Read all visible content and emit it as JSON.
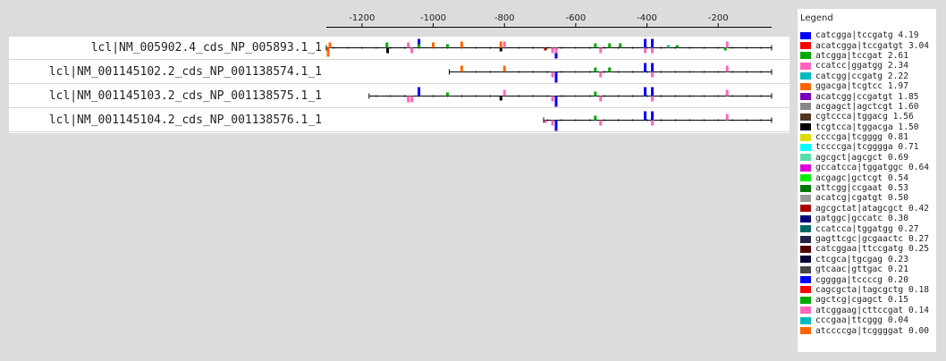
{
  "axis": {
    "ticks": [
      -1200,
      -1000,
      -800,
      -600,
      -400,
      -200
    ],
    "min": -1300,
    "max": -50
  },
  "sequences": [
    {
      "label": "lcl|NM_005902.4_cds_NP_005893.1_1",
      "start": -1300
    },
    {
      "label": "lcl|NM_001145102.2_cds_NP_001138574.1_1",
      "start": -955
    },
    {
      "label": "lcl|NM_001145103.2_cds_NP_001138575.1_1",
      "start": -1180
    },
    {
      "label": "lcl|NM_001145104.2_cds_NP_001138576.1_1",
      "start": -690
    }
  ],
  "legend": {
    "title": "Legend",
    "items": [
      {
        "label": "catcgga|tccgatg 4.19",
        "color": "#0000ff"
      },
      {
        "label": "acatcgga|tccgatgt 3.04",
        "color": "#ff0000"
      },
      {
        "label": "atcgga|tccgat 2.61",
        "color": "#00aa00"
      },
      {
        "label": "ccatcc|ggatgg 2.34",
        "color": "#ff66bb"
      },
      {
        "label": "catcgg|ccgatg 2.22",
        "color": "#00bbbb"
      },
      {
        "label": "ggacga|tcgtcc 1.97",
        "color": "#ff6600"
      },
      {
        "label": "acatcgg|ccgatgt 1.85",
        "color": "#7700bb"
      },
      {
        "label": "acgagct|agctcgt 1.60",
        "color": "#888888"
      },
      {
        "label": "cgtccca|tggacg 1.56",
        "color": "#553322"
      },
      {
        "label": "tcgtcca|tggacga 1.50",
        "color": "#000000"
      },
      {
        "label": "ccccga|tcgggg 0.81",
        "color": "#dddd00"
      },
      {
        "label": "tccccga|tcgggga 0.71",
        "color": "#00ffff"
      },
      {
        "label": "agcgct|agcgct 0.69",
        "color": "#55ddaa"
      },
      {
        "label": "gccatcca|tggatggc 0.64",
        "color": "#dd00dd"
      },
      {
        "label": "acgagc|gctcgt 0.54",
        "color": "#00ee00"
      },
      {
        "label": "attcgg|ccgaat 0.53",
        "color": "#007700"
      },
      {
        "label": "acatcg|cgatgt 0.50",
        "color": "#999999"
      },
      {
        "label": "agcgctat|atagcgct 0.42",
        "color": "#aa0000"
      },
      {
        "label": "gatggc|gccatc 0.30",
        "color": "#000077"
      },
      {
        "label": "ccatcca|tggatgg 0.27",
        "color": "#006666"
      },
      {
        "label": "gagttcgc|gcgaactc 0.27",
        "color": "#222244"
      },
      {
        "label": "catcggaa|ttccgatg 0.25",
        "color": "#550000"
      },
      {
        "label": "ctcgca|tgcgag 0.23",
        "color": "#000033"
      },
      {
        "label": "gtcaac|gttgac 0.21",
        "color": "#444444"
      },
      {
        "label": "cggggа|tccccg 0.20",
        "color": "#0000ff"
      },
      {
        "label": "cagcgcta|tagcgctg 0.18",
        "color": "#ff0000"
      },
      {
        "label": "agctcg|cgagct 0.15",
        "color": "#00aa00"
      },
      {
        "label": "atcggaag|cttccgat 0.14",
        "color": "#ff66bb"
      },
      {
        "label": "cccgaa|ttcggg 0.04",
        "color": "#00bbbb"
      },
      {
        "label": "atccccga|tcggggat 0.00",
        "color": "#ff6600"
      }
    ]
  },
  "sites": [
    {
      "row": 0,
      "pos": -1295,
      "color": "#ff6600",
      "strand": "minus",
      "h": 10
    },
    {
      "row": 0,
      "pos": -1290,
      "color": "#ff6600",
      "strand": "plus",
      "h": 6
    },
    {
      "row": 0,
      "pos": -1130,
      "color": "#00aa00",
      "strand": "plus",
      "h": 6
    },
    {
      "row": 0,
      "pos": -1128,
      "color": "#000000",
      "strand": "minus",
      "h": 6
    },
    {
      "row": 0,
      "pos": -1070,
      "color": "#ff66bb",
      "strand": "plus",
      "h": 6
    },
    {
      "row": 0,
      "pos": -1060,
      "color": "#ff66bb",
      "strand": "minus",
      "h": 6
    },
    {
      "row": 0,
      "pos": -1040,
      "color": "#0000ff",
      "strand": "plus",
      "h": 10
    },
    {
      "row": 0,
      "pos": -1040,
      "color": "#00aa00",
      "strand": "plus",
      "h": 4
    },
    {
      "row": 0,
      "pos": -1000,
      "color": "#ff6600",
      "strand": "plus",
      "h": 6
    },
    {
      "row": 0,
      "pos": -960,
      "color": "#00aa00",
      "strand": "plus",
      "h": 4
    },
    {
      "row": 0,
      "pos": -920,
      "color": "#ff6600",
      "strand": "plus",
      "h": 7
    },
    {
      "row": 0,
      "pos": -810,
      "color": "#ff6600",
      "strand": "plus",
      "h": 7
    },
    {
      "row": 0,
      "pos": -800,
      "color": "#ff66bb",
      "strand": "plus",
      "h": 7
    },
    {
      "row": 0,
      "pos": -810,
      "color": "#000000",
      "strand": "minus",
      "h": 4
    },
    {
      "row": 0,
      "pos": -685,
      "color": "#aa0000",
      "strand": "minus",
      "h": 3
    },
    {
      "row": 0,
      "pos": -665,
      "color": "#ff66bb",
      "strand": "minus",
      "h": 6
    },
    {
      "row": 0,
      "pos": -655,
      "color": "#0000ff",
      "strand": "minus",
      "h": 12
    },
    {
      "row": 0,
      "pos": -655,
      "color": "#ff66bb",
      "strand": "minus",
      "h": 6
    },
    {
      "row": 0,
      "pos": -545,
      "color": "#00aa00",
      "strand": "plus",
      "h": 5
    },
    {
      "row": 0,
      "pos": -530,
      "color": "#ff66bb",
      "strand": "minus",
      "h": 6
    },
    {
      "row": 0,
      "pos": -505,
      "color": "#00aa00",
      "strand": "plus",
      "h": 5
    },
    {
      "row": 0,
      "pos": -475,
      "color": "#00aa00",
      "strand": "plus",
      "h": 5
    },
    {
      "row": 0,
      "pos": -405,
      "color": "#0000ff",
      "strand": "plus",
      "h": 10
    },
    {
      "row": 0,
      "pos": -405,
      "color": "#ff66bb",
      "strand": "minus",
      "h": 6
    },
    {
      "row": 0,
      "pos": -385,
      "color": "#0000ff",
      "strand": "plus",
      "h": 10
    },
    {
      "row": 0,
      "pos": -385,
      "color": "#ff66bb",
      "strand": "minus",
      "h": 6
    },
    {
      "row": 0,
      "pos": -340,
      "color": "#00bbbb",
      "strand": "plus",
      "h": 3
    },
    {
      "row": 0,
      "pos": -315,
      "color": "#00aa00",
      "strand": "plus",
      "h": 3
    },
    {
      "row": 0,
      "pos": -175,
      "color": "#ff66bb",
      "strand": "plus",
      "h": 7
    },
    {
      "row": 0,
      "pos": -180,
      "color": "#00aa00",
      "strand": "minus",
      "h": 3
    },
    {
      "row": 1,
      "pos": -920,
      "color": "#ff6600",
      "strand": "plus",
      "h": 7
    },
    {
      "row": 1,
      "pos": -800,
      "color": "#ff6600",
      "strand": "plus",
      "h": 7
    },
    {
      "row": 1,
      "pos": -665,
      "color": "#ff66bb",
      "strand": "minus",
      "h": 6
    },
    {
      "row": 1,
      "pos": -655,
      "color": "#0000ff",
      "strand": "minus",
      "h": 12
    },
    {
      "row": 1,
      "pos": -545,
      "color": "#00aa00",
      "strand": "plus",
      "h": 5
    },
    {
      "row": 1,
      "pos": -530,
      "color": "#ff66bb",
      "strand": "minus",
      "h": 6
    },
    {
      "row": 1,
      "pos": -505,
      "color": "#00aa00",
      "strand": "plus",
      "h": 5
    },
    {
      "row": 1,
      "pos": -405,
      "color": "#0000ff",
      "strand": "plus",
      "h": 10
    },
    {
      "row": 1,
      "pos": -385,
      "color": "#0000ff",
      "strand": "plus",
      "h": 10
    },
    {
      "row": 1,
      "pos": -385,
      "color": "#ff66bb",
      "strand": "minus",
      "h": 6
    },
    {
      "row": 1,
      "pos": -175,
      "color": "#ff66bb",
      "strand": "plus",
      "h": 7
    },
    {
      "row": 2,
      "pos": -1070,
      "color": "#ff66bb",
      "strand": "minus",
      "h": 7
    },
    {
      "row": 2,
      "pos": -1060,
      "color": "#ff66bb",
      "strand": "minus",
      "h": 7
    },
    {
      "row": 2,
      "pos": -1040,
      "color": "#0000ff",
      "strand": "plus",
      "h": 10
    },
    {
      "row": 2,
      "pos": -960,
      "color": "#00aa00",
      "strand": "plus",
      "h": 4
    },
    {
      "row": 2,
      "pos": -810,
      "color": "#000000",
      "strand": "minus",
      "h": 5
    },
    {
      "row": 2,
      "pos": -800,
      "color": "#ff66bb",
      "strand": "plus",
      "h": 7
    },
    {
      "row": 2,
      "pos": -665,
      "color": "#ff66bb",
      "strand": "minus",
      "h": 6
    },
    {
      "row": 2,
      "pos": -655,
      "color": "#0000ff",
      "strand": "minus",
      "h": 12
    },
    {
      "row": 2,
      "pos": -545,
      "color": "#00aa00",
      "strand": "plus",
      "h": 5
    },
    {
      "row": 2,
      "pos": -530,
      "color": "#ff66bb",
      "strand": "minus",
      "h": 6
    },
    {
      "row": 2,
      "pos": -405,
      "color": "#0000ff",
      "strand": "plus",
      "h": 10
    },
    {
      "row": 2,
      "pos": -385,
      "color": "#0000ff",
      "strand": "plus",
      "h": 10
    },
    {
      "row": 2,
      "pos": -385,
      "color": "#ff66bb",
      "strand": "minus",
      "h": 6
    },
    {
      "row": 2,
      "pos": -175,
      "color": "#ff66bb",
      "strand": "plus",
      "h": 7
    },
    {
      "row": 3,
      "pos": -685,
      "color": "#ff66bb",
      "strand": "minus",
      "h": 3
    },
    {
      "row": 3,
      "pos": -665,
      "color": "#ff66bb",
      "strand": "minus",
      "h": 6
    },
    {
      "row": 3,
      "pos": -655,
      "color": "#0000ff",
      "strand": "minus",
      "h": 12
    },
    {
      "row": 3,
      "pos": -545,
      "color": "#00aa00",
      "strand": "plus",
      "h": 5
    },
    {
      "row": 3,
      "pos": -530,
      "color": "#ff66bb",
      "strand": "minus",
      "h": 6
    },
    {
      "row": 3,
      "pos": -405,
      "color": "#0000ff",
      "strand": "plus",
      "h": 10
    },
    {
      "row": 3,
      "pos": -385,
      "color": "#0000ff",
      "strand": "plus",
      "h": 10
    },
    {
      "row": 3,
      "pos": -385,
      "color": "#ff66bb",
      "strand": "minus",
      "h": 6
    },
    {
      "row": 3,
      "pos": -175,
      "color": "#ff66bb",
      "strand": "plus",
      "h": 7
    }
  ]
}
